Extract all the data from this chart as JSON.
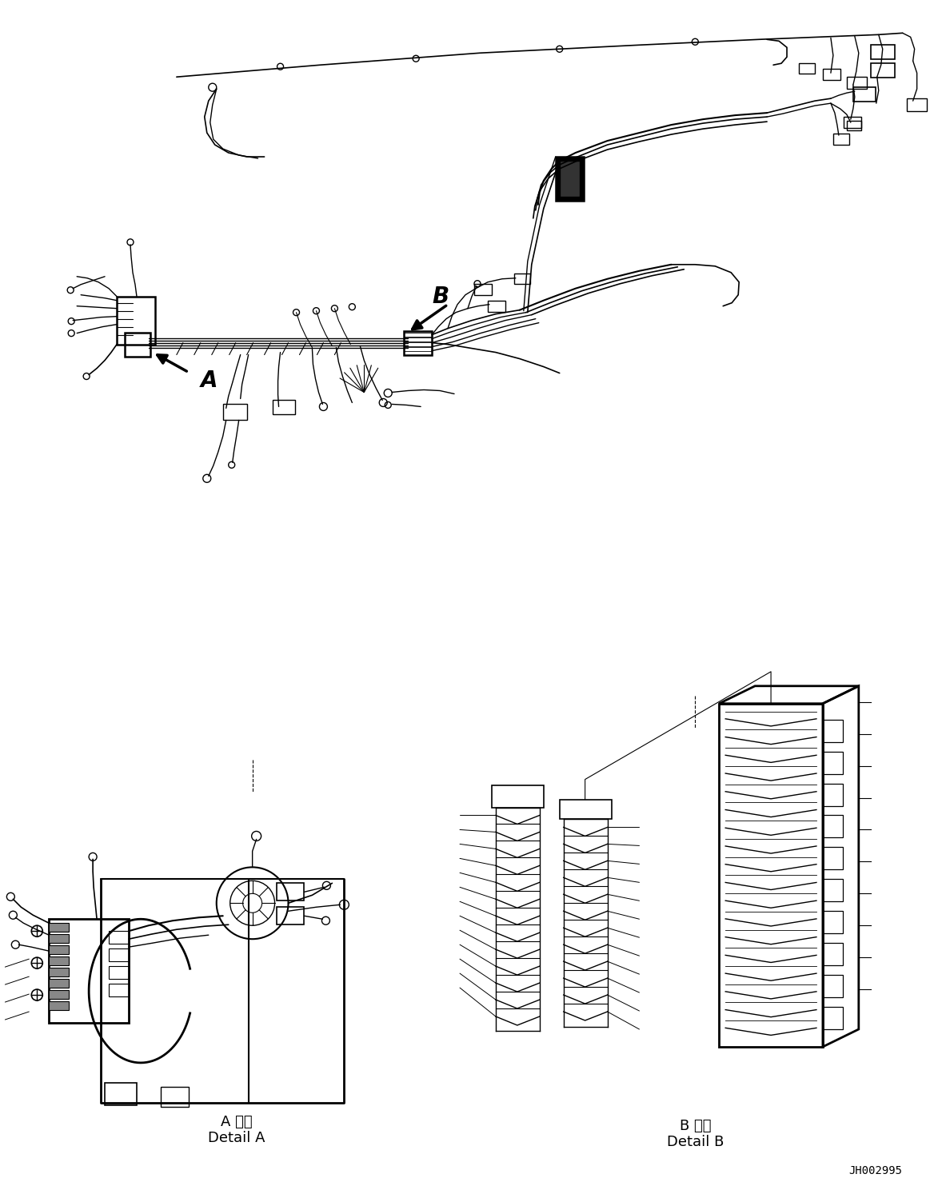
{
  "background_color": "#ffffff",
  "line_color": "#000000",
  "label_A": "A",
  "label_B": "B",
  "detail_A_jp": "A 詳細",
  "detail_A_en": "Detail A",
  "detail_B_jp": "B 詳細",
  "detail_B_en": "Detail B",
  "part_number": "JH002995",
  "fig_width": 11.63,
  "fig_height": 14.88,
  "dpi": 100
}
